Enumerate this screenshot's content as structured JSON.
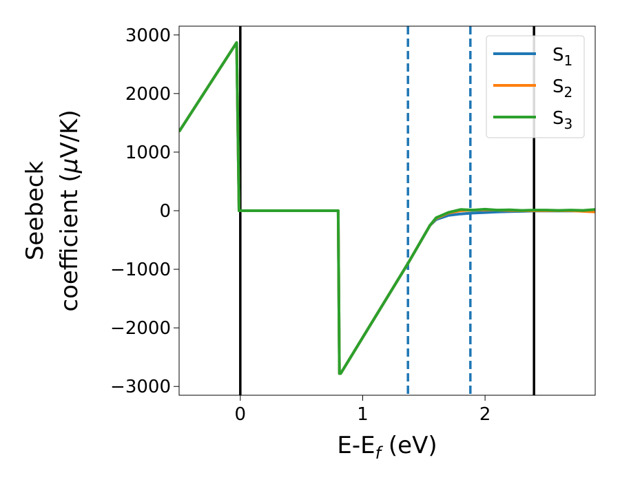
{
  "chart_data": {
    "type": "line",
    "xlabel": "E-E",
    "xlabel_sub": "f",
    "xlabel_unit": " (eV)",
    "ylabel_line1": "Seebeck",
    "ylabel_line2": "coefficient  (",
    "ylabel_mu": "μ",
    "ylabel_unit": "V/K)",
    "xlim": [
      -0.5,
      2.9
    ],
    "ylim": [
      -3150,
      3150
    ],
    "xticks": [
      0,
      1,
      2
    ],
    "xtick_labels": [
      "0",
      "1",
      "2"
    ],
    "yticks": [
      3000,
      2000,
      1000,
      0,
      -1000,
      -2000,
      -3000
    ],
    "ytick_labels": [
      "3000",
      "2000",
      "1000",
      "0",
      "−1000",
      "−2000",
      "−3000"
    ],
    "grid": false,
    "legend_position": "top-right",
    "vlines": [
      {
        "x": 0.0,
        "style": "solid",
        "color": "#000000"
      },
      {
        "x": 2.4,
        "style": "solid",
        "color": "#000000"
      },
      {
        "x": 1.37,
        "style": "dashed",
        "color": "#1f77b4"
      },
      {
        "x": 1.88,
        "style": "dashed",
        "color": "#1f77b4"
      }
    ],
    "series": [
      {
        "name": "S",
        "sub": "1",
        "color": "#1f77b4",
        "x": [
          -0.5,
          -0.03,
          -0.01,
          0.8,
          0.81,
          0.82,
          1.37,
          1.55,
          1.6,
          1.7,
          1.8,
          1.9,
          2.0,
          2.1,
          2.2,
          2.3,
          2.4,
          2.5,
          2.6,
          2.7,
          2.8,
          2.9
        ],
        "y": [
          1350,
          2870,
          0,
          0,
          -2780,
          -2780,
          -900,
          -250,
          -150,
          -80,
          -55,
          -40,
          -30,
          -20,
          -15,
          -10,
          -5,
          -5,
          -5,
          -5,
          0,
          0
        ]
      },
      {
        "name": "S",
        "sub": "2",
        "color": "#ff7f0e",
        "x": [
          -0.5,
          -0.03,
          -0.01,
          0.8,
          0.81,
          0.82,
          1.37,
          1.55,
          1.6,
          1.7,
          1.8,
          1.9,
          2.0,
          2.1,
          2.2,
          2.3,
          2.4,
          2.5,
          2.6,
          2.7,
          2.8,
          2.9
        ],
        "y": [
          1350,
          2870,
          0,
          0,
          -2780,
          -2780,
          -900,
          -250,
          -130,
          -40,
          0,
          10,
          15,
          10,
          5,
          0,
          0,
          0,
          0,
          0,
          -10,
          -20
        ]
      },
      {
        "name": "S",
        "sub": "3",
        "color": "#2ca02c",
        "x": [
          -0.5,
          -0.03,
          -0.01,
          0.8,
          0.81,
          0.82,
          1.37,
          1.55,
          1.6,
          1.7,
          1.8,
          1.9,
          2.0,
          2.1,
          2.2,
          2.3,
          2.4,
          2.5,
          2.6,
          2.7,
          2.8,
          2.9
        ],
        "y": [
          1350,
          2870,
          0,
          0,
          -2780,
          -2780,
          -900,
          -250,
          -120,
          -30,
          20,
          10,
          25,
          10,
          15,
          5,
          10,
          10,
          5,
          10,
          5,
          20
        ]
      }
    ]
  }
}
